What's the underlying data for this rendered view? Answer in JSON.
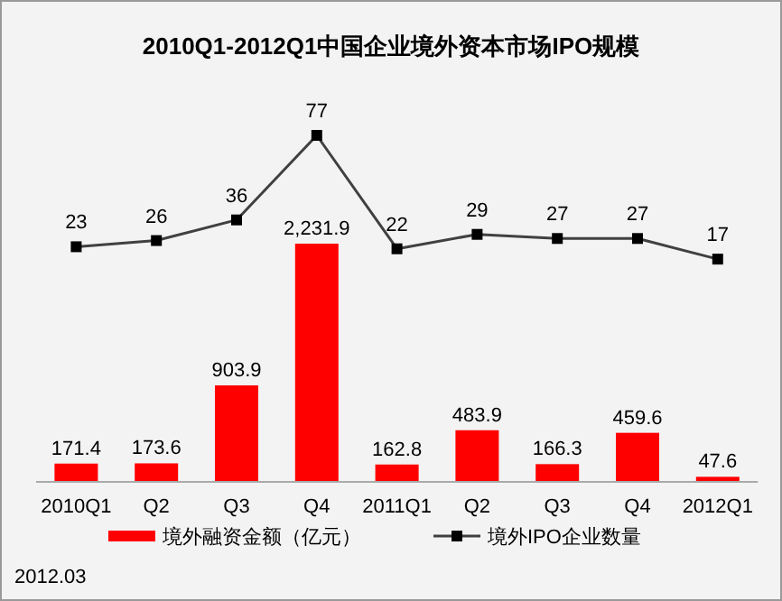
{
  "chart_data": {
    "type": "bar",
    "title": "2010Q1-2012Q1中国企业境外资本市场IPO规模",
    "categories": [
      "2010Q1",
      "Q2",
      "Q3",
      "Q4",
      "2011Q1",
      "Q2",
      "Q3",
      "Q4",
      "2012Q1"
    ],
    "series": [
      {
        "name": "境外融资金额（亿元）",
        "color": "#ff0000",
        "values": [
          171.4,
          173.6,
          903.9,
          2231.9,
          162.8,
          483.9,
          166.3,
          459.6,
          47.6
        ],
        "value_labels": [
          "171.4",
          "173.6",
          "903.9",
          "2,231.9",
          "162.8",
          "483.9",
          "166.3",
          "459.6",
          "47.6"
        ]
      },
      {
        "name": "境外IPO企业数量",
        "type": "line",
        "axis": "y2",
        "color": "#404040",
        "marker": "square",
        "values": [
          23,
          26,
          36,
          77,
          22,
          29,
          27,
          27,
          17
        ]
      }
    ],
    "data_labels": true,
    "legend": "bottom",
    "grid": false,
    "annotations": [
      "2012.03"
    ]
  }
}
